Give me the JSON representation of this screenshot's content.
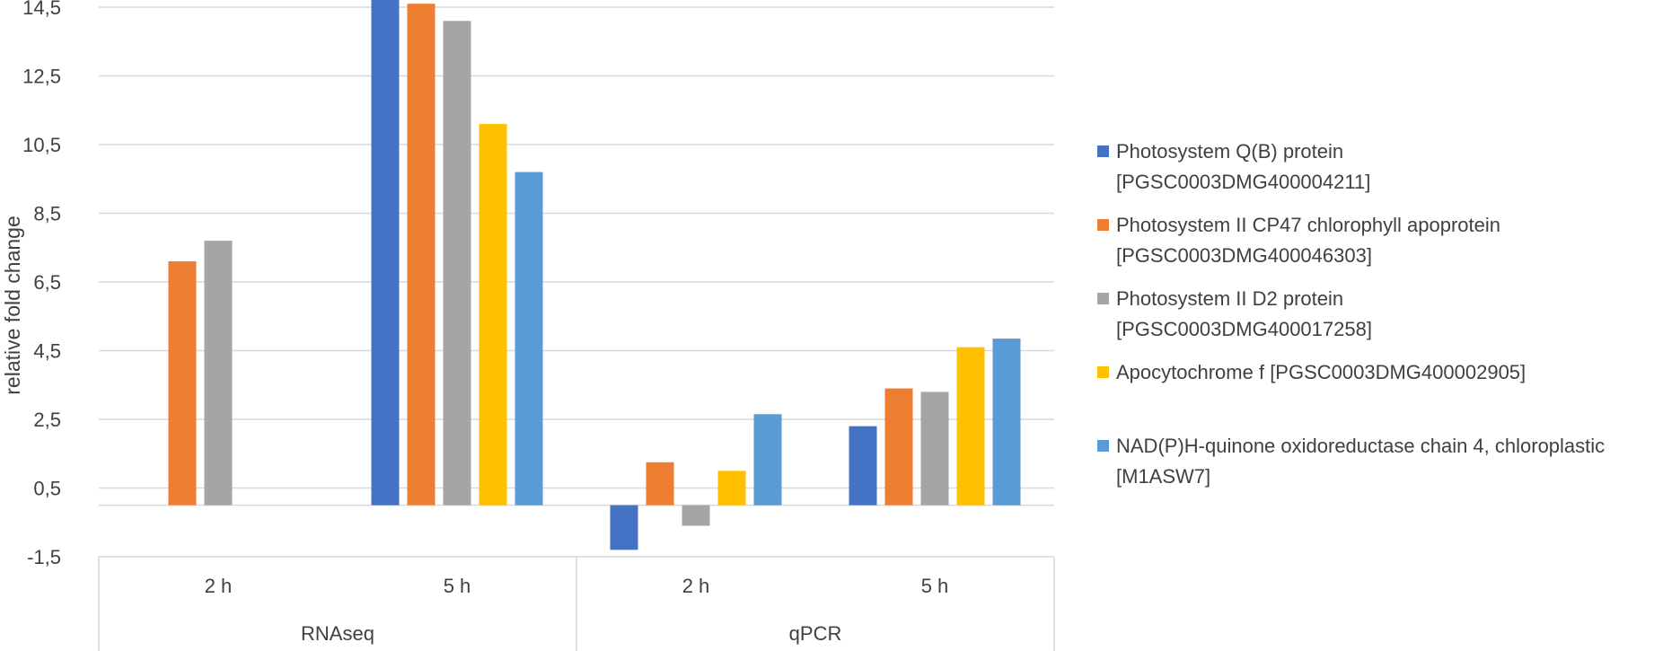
{
  "chart_data": {
    "type": "bar",
    "ylabel": "relative fold change",
    "ylim": [
      -1.5,
      14.5
    ],
    "yticks": [
      "-1,5",
      "0,5",
      "2,5",
      "4,5",
      "6,5",
      "8,5",
      "10,5",
      "12,5",
      "14,5"
    ],
    "yticks_values": [
      -1.5,
      0.5,
      2.5,
      4.5,
      6.5,
      8.5,
      10.5,
      12.5,
      14.5
    ],
    "grid": true,
    "legend_position": "right",
    "groups": [
      {
        "label": "RNAseq",
        "categories": [
          "2 h",
          "5 h"
        ]
      },
      {
        "label": "qPCR",
        "categories": [
          "2 h",
          "5 h"
        ]
      }
    ],
    "categories": [
      "2 h",
      "5 h",
      "2 h",
      "5 h"
    ],
    "series": [
      {
        "name": "Photosystem Q(B) protein\n[PGSC0003DMG400004211]",
        "color": "#4472C4",
        "values": [
          null,
          14.8,
          -1.3,
          2.3
        ]
      },
      {
        "name": "Photosystem II CP47 chlorophyll apoprotein\n[PGSC0003DMG400046303]",
        "color": "#ED7D31",
        "values": [
          7.1,
          14.6,
          1.25,
          3.4
        ]
      },
      {
        "name": "Photosystem II D2 protein\n[PGSC0003DMG400017258]",
        "color": "#A5A5A5",
        "values": [
          7.7,
          14.1,
          -0.6,
          3.3
        ]
      },
      {
        "name": "Apocytochrome f [PGSC0003DMG400002905]",
        "color": "#FFC000",
        "values": [
          null,
          11.1,
          1.0,
          4.6
        ]
      },
      {
        "name": "NAD(P)H-quinone oxidoreductase chain 4, chloroplastic\n[M1ASW7]",
        "color": "#5B9BD5",
        "values": [
          null,
          9.7,
          2.65,
          4.85
        ]
      }
    ]
  }
}
